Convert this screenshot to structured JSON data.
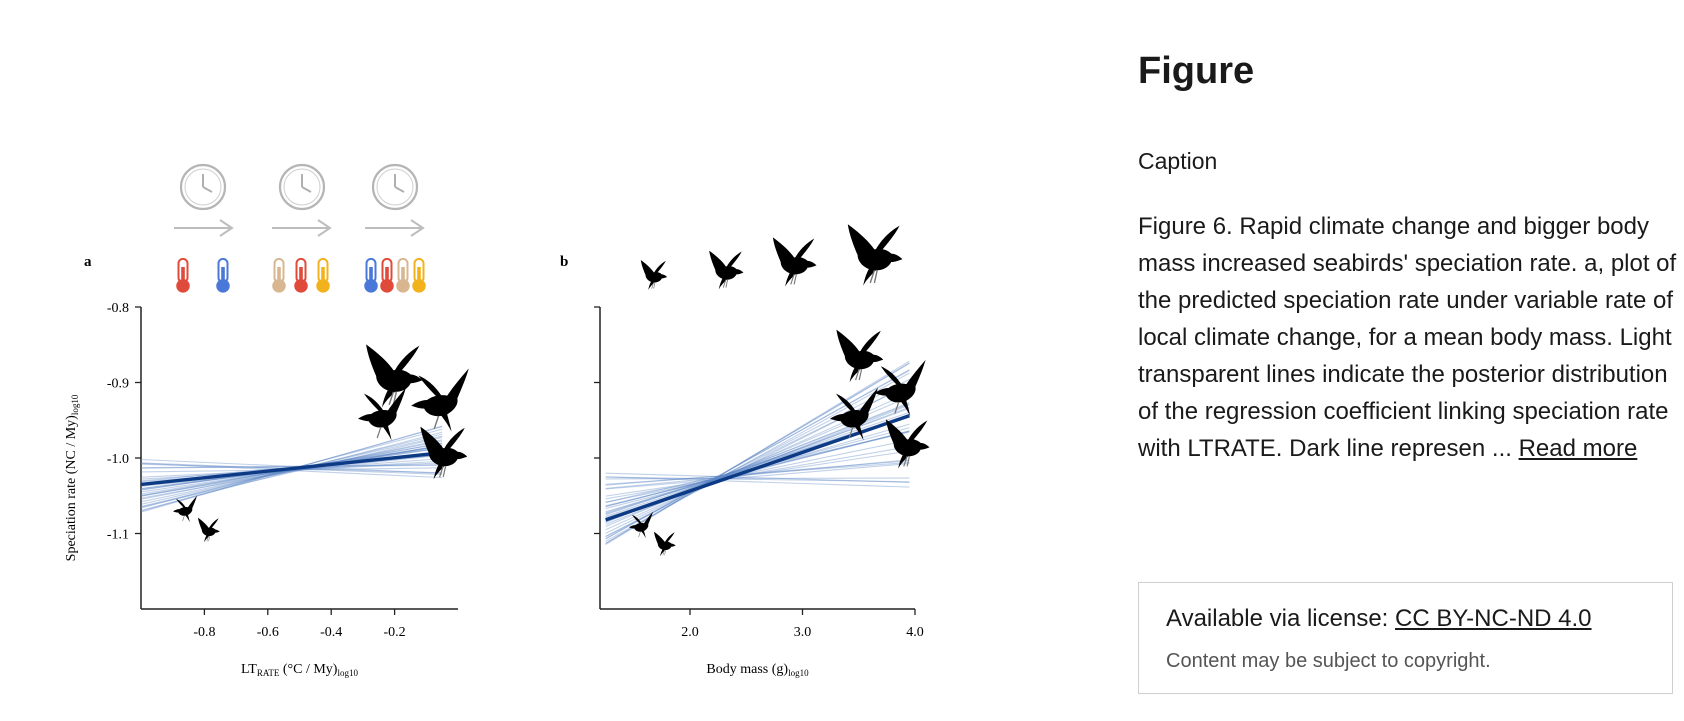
{
  "side": {
    "title": "Figure",
    "caption_label": "Caption",
    "caption_text": "Figure 6. Rapid climate change and bigger body mass increased seabirds' speciation rate. a, plot of the predicted speciation rate under variable rate of local climate change, for a mean body mass. Light transparent lines indicate the posterior distribution of the regression coefficient linking speciation rate with LTRATE. Dark line represen ... ",
    "read_more": "Read more",
    "license_prefix": "Available via license: ",
    "license_link": "CC BY-NC-ND 4.0",
    "license_note": "Content may be subject to copyright."
  },
  "colors": {
    "line_dark": "#0d3a85",
    "line_light": "#5b86c4",
    "thermo_red": "#e04a3a",
    "thermo_blue": "#4a78d8",
    "thermo_tan": "#d8b690",
    "thermo_yellow": "#f2b21e"
  },
  "chart_data": [
    {
      "type": "line",
      "panel_label": "a",
      "title": "",
      "xlabel_main": "LT",
      "xlabel_sub": "RATE",
      "xlabel_rest": " (°C / My)",
      "xlabel_log": "log10",
      "ylabel_main": "Speciation rate (NC / My)",
      "ylabel_log": "log10",
      "xlim": [
        -1.0,
        0.0
      ],
      "ylim": [
        -1.2,
        -0.8
      ],
      "xticks": [
        -0.8,
        -0.6,
        -0.4,
        -0.2
      ],
      "xtick_labels": [
        "-0.8",
        "-0.6",
        "-0.4",
        "-0.2"
      ],
      "yticks": [
        -0.8,
        -0.9,
        -1.0,
        -1.1
      ],
      "ytick_labels": [
        "-0.8",
        "-0.9",
        "-1.0",
        "-1.1"
      ],
      "mean_line": {
        "x": [
          -1.0,
          -0.05
        ],
        "y": [
          -1.035,
          -0.993
        ]
      },
      "pivot": [
        -0.5,
        -1.014
      ],
      "slope_range": [
        -0.02,
        0.12
      ],
      "posterior_lines": 34,
      "grid": false
    },
    {
      "type": "line",
      "panel_label": "b",
      "title": "",
      "xlabel_main": "Body mass (g)",
      "xlabel_log": "log10",
      "xlim": [
        1.2,
        4.0
      ],
      "ylim": [
        -1.2,
        -0.8
      ],
      "xticks": [
        2.0,
        3.0,
        4.0
      ],
      "xtick_labels": [
        "2.0",
        "3.0",
        "4.0"
      ],
      "yticks": [
        -0.8,
        -0.9,
        -1.0,
        -1.1
      ],
      "ytick_labels": [
        "",
        "",
        "",
        ""
      ],
      "mean_line": {
        "x": [
          1.25,
          3.95
        ],
        "y": [
          -1.082,
          -0.944
        ]
      },
      "pivot": [
        2.25,
        -1.027
      ],
      "slope_range": [
        -0.005,
        0.09
      ],
      "posterior_lines": 38,
      "grid": false
    }
  ]
}
